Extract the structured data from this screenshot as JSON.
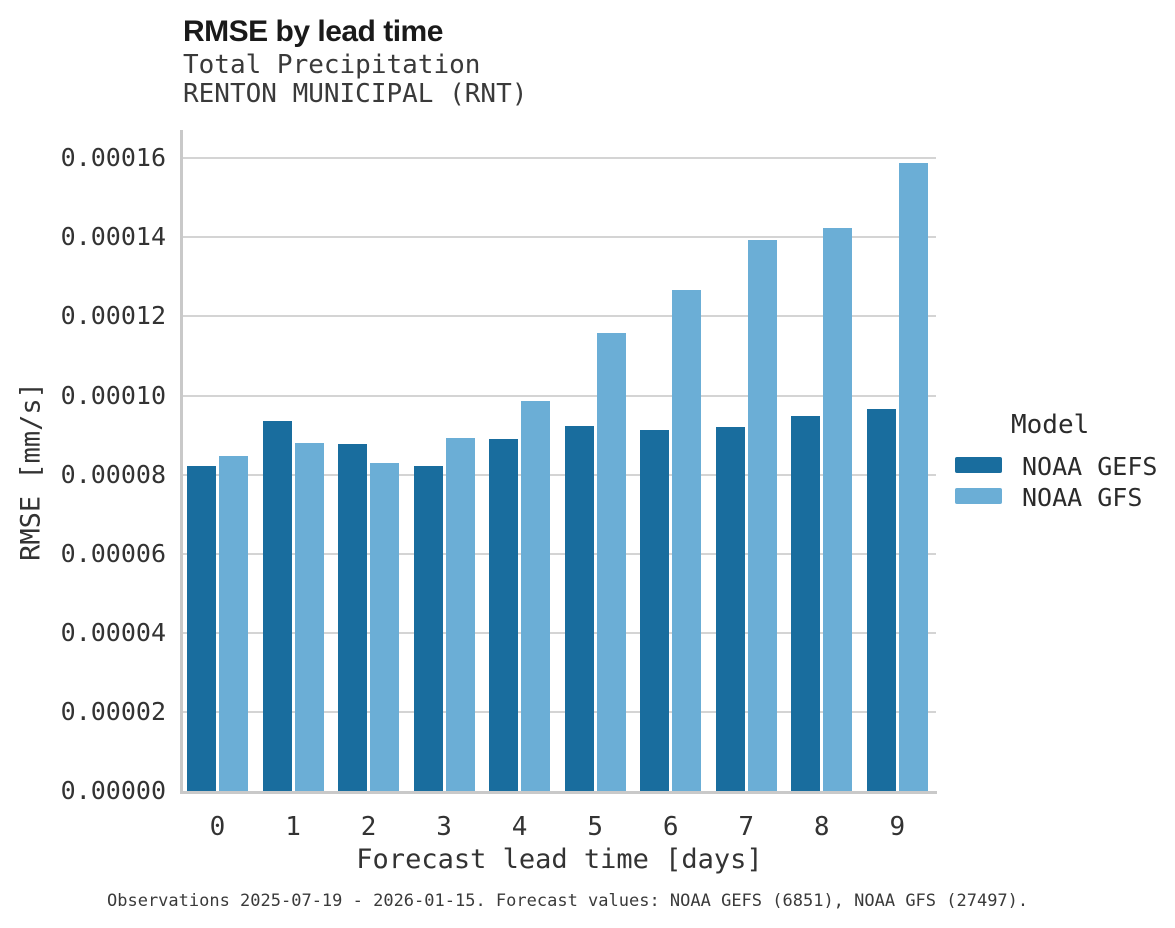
{
  "header": {
    "title": "RMSE by lead time",
    "subtitle": "Total Precipitation",
    "station": "RENTON MUNICIPAL (RNT)"
  },
  "caption": "Observations 2025-07-19 - 2026-01-15. Forecast values: NOAA GEFS (6851), NOAA GFS (27497).",
  "chart_data": {
    "type": "bar",
    "title": "RMSE by lead time",
    "subtitle": "Total Precipitation",
    "station": "RENTON MUNICIPAL (RNT)",
    "xlabel": "Forecast lead time [days]",
    "ylabel": "RMSE [mm/s]",
    "categories": [
      0,
      1,
      2,
      3,
      4,
      5,
      6,
      7,
      8,
      9
    ],
    "series": [
      {
        "name": "NOAA GEFS",
        "color": "#196d9e",
        "values": [
          8.23e-05,
          9.35e-05,
          8.78e-05,
          8.21e-05,
          8.9e-05,
          9.22e-05,
          9.12e-05,
          9.2e-05,
          9.49e-05,
          9.66e-05
        ]
      },
      {
        "name": "NOAA GFS",
        "color": "#6baed6",
        "values": [
          8.48e-05,
          8.8e-05,
          8.3e-05,
          8.93e-05,
          9.87e-05,
          0.0001159,
          0.0001268,
          0.0001394,
          0.0001424,
          0.0001587
        ]
      }
    ],
    "ylim": [
      0,
      0.00016
    ],
    "ytick_step": 2e-05,
    "yticks": [
      "0.00000",
      "0.00002",
      "0.00004",
      "0.00006",
      "0.00008",
      "0.00010",
      "0.00012",
      "0.00014",
      "0.00016"
    ],
    "grid": "horizontal-only",
    "legend_title": "Model",
    "legend_position": "right",
    "spine_color": "#c9c9c9",
    "gridline_color": "#d4d4d4"
  }
}
